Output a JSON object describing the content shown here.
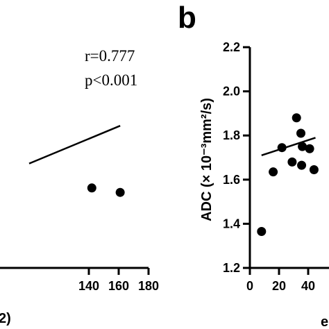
{
  "chart_data": [
    {
      "type": "scatter",
      "panel": "a",
      "annotations": {
        "r": "r=0.777",
        "p": "p<0.001"
      },
      "x_ticks": [
        "140",
        "160",
        "180"
      ],
      "xlabel_fragment": "2)",
      "xlim": [
        0,
        180
      ],
      "ylim": [
        1.2,
        2.2
      ],
      "points": [
        {
          "x": 142,
          "y": 1.56
        },
        {
          "x": 161,
          "y": 1.54
        }
      ],
      "trend_line": {
        "x": [
          100,
          161
        ],
        "y": [
          1.67,
          1.84
        ]
      }
    },
    {
      "type": "scatter",
      "panel": "b",
      "panel_label": "b",
      "ylabel": "ADC (× 10⁻³mm²/s)",
      "y_ticks": [
        "1.2",
        "1.4",
        "1.6",
        "1.8",
        "2.0",
        "2.2"
      ],
      "x_ticks": [
        "0",
        "20",
        "40"
      ],
      "xlabel_fragment": "e",
      "xlim": [
        0,
        45
      ],
      "ylim": [
        1.2,
        2.2
      ],
      "points": [
        {
          "x": 8,
          "y": 1.365
        },
        {
          "x": 16,
          "y": 1.635
        },
        {
          "x": 22,
          "y": 1.745
        },
        {
          "x": 29,
          "y": 1.68
        },
        {
          "x": 32,
          "y": 1.88
        },
        {
          "x": 35,
          "y": 1.81
        },
        {
          "x": 36,
          "y": 1.75
        },
        {
          "x": 35.5,
          "y": 1.665
        },
        {
          "x": 41,
          "y": 1.74
        },
        {
          "x": 44,
          "y": 1.645
        }
      ],
      "trend_line": {
        "x": [
          8,
          45
        ],
        "y": [
          1.71,
          1.79
        ]
      }
    }
  ]
}
